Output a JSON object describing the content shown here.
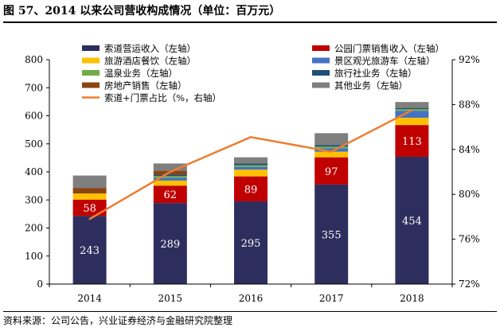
{
  "header": {
    "title": "图 57、2014 以来公司营收构成情况（单位：百万元）"
  },
  "footer": {
    "source": "资料来源：公司公告，兴业证券经济与金融研究院整理"
  },
  "chart_data": {
    "type": "bar",
    "stacked": true,
    "categories": [
      "2014",
      "2015",
      "2016",
      "2017",
      "2018"
    ],
    "ylim": [
      0,
      800
    ],
    "yticks": [
      "0",
      "100",
      "200",
      "300",
      "400",
      "500",
      "600",
      "700",
      "800"
    ],
    "y2lim": [
      72,
      92
    ],
    "y2ticks": [
      "72%",
      "76%",
      "80%",
      "84%",
      "88%",
      "92%"
    ],
    "grid": false,
    "legend_position": "top",
    "series": [
      {
        "name": "索道营运收入（左轴）",
        "color": "#2e2e5e",
        "label_color": "#ffffff",
        "values": [
          243,
          289,
          295,
          355,
          454
        ],
        "labels": [
          "243",
          "289",
          "295",
          "355",
          "454"
        ]
      },
      {
        "name": "公园门票销售收入（左轴）",
        "color": "#c00000",
        "label_color": "#ffffff",
        "values": [
          58,
          62,
          89,
          97,
          113
        ],
        "labels": [
          "58",
          "62",
          "89",
          "97",
          "113"
        ]
      },
      {
        "name": "旅游酒店餐饮（左轴）",
        "color": "#ffc000",
        "values": [
          22,
          18,
          24,
          20,
          26
        ]
      },
      {
        "name": "景区观光旅游车（左轴）",
        "color": "#4472c4",
        "values": [
          0,
          10,
          10,
          12,
          25
        ]
      },
      {
        "name": "温泉业务（左轴）",
        "color": "#70ad47",
        "values": [
          0,
          6,
          6,
          6,
          6
        ]
      },
      {
        "name": "旅行社业务（左轴）",
        "color": "#1f4e79",
        "values": [
          0,
          5,
          6,
          6,
          4
        ]
      },
      {
        "name": "房地产销售（左轴）",
        "color": "#8b4513",
        "values": [
          20,
          14,
          0,
          0,
          0
        ]
      },
      {
        "name": "其他业务（左轴）",
        "color": "#7f7f7f",
        "values": [
          44,
          26,
          22,
          42,
          21
        ]
      }
    ],
    "line_series": {
      "name": "索道+门票占比（%，右轴）",
      "color": "#ed7d31",
      "axis": "right",
      "values": [
        77.8,
        82.0,
        85.1,
        83.8,
        87.5
      ]
    }
  }
}
